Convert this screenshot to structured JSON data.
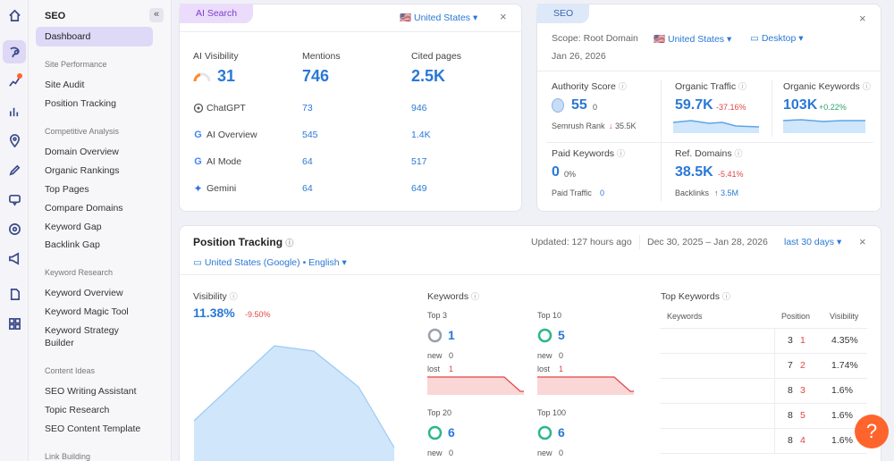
{
  "colors": {
    "accent": "#2a78d6",
    "brand": "#ff642d",
    "ai_tag": "#ecdcfb",
    "seo_tag": "#dde9f9",
    "chart_fill": "#cfe6fb",
    "red_fill": "#fbd6d6"
  },
  "rail_icons": [
    "home-icon",
    "seo-icon",
    "sparkle-chart-icon",
    "bar-chart-icon",
    "location-icon",
    "pen-icon",
    "chat-icon",
    "radar-icon",
    "megaphone-icon",
    "document-icon",
    "apps-icon"
  ],
  "sidebar": {
    "title": "SEO",
    "collapse": "«",
    "dashboard": "Dashboard",
    "sections": {
      "site_performance": "Site Performance",
      "competitive": "Competitive Analysis",
      "keyword_research": "Keyword Research",
      "content_ideas": "Content Ideas",
      "link_building": "Link Building"
    },
    "items": {
      "site_audit": "Site Audit",
      "position_tracking": "Position Tracking",
      "domain_overview": "Domain Overview",
      "organic_rankings": "Organic Rankings",
      "top_pages": "Top Pages",
      "compare_domains": "Compare Domains",
      "keyword_gap": "Keyword Gap",
      "backlink_gap": "Backlink Gap",
      "keyword_overview": "Keyword Overview",
      "keyword_magic": "Keyword Magic Tool",
      "keyword_strategy": "Keyword Strategy",
      "keyword_strategy2": "Builder",
      "seo_writing": "SEO Writing Assistant",
      "topic_research": "Topic Research",
      "seo_content": "SEO Content Template"
    }
  },
  "ai": {
    "tag": "AI Search",
    "country": "United States",
    "close": "×",
    "visibility_label": "AI Visibility",
    "visibility": "31",
    "mentions_label": "Mentions",
    "mentions": "746",
    "cited_label": "Cited pages",
    "cited": "2.5K",
    "rows": [
      {
        "name": "ChatGPT",
        "icon": "openai-icon",
        "mentions": "73",
        "cited": "946"
      },
      {
        "name": "AI Overview",
        "icon": "google-icon",
        "mentions": "545",
        "cited": "1.4K"
      },
      {
        "name": "AI Mode",
        "icon": "google-icon",
        "mentions": "64",
        "cited": "517"
      },
      {
        "name": "Gemini",
        "icon": "gemini-icon",
        "mentions": "64",
        "cited": "649"
      }
    ]
  },
  "seo": {
    "tag": "SEO",
    "close": "×",
    "scope": "Scope: Root Domain",
    "country": "United States",
    "device": "Desktop",
    "date": "Jan 26, 2026",
    "authority_label": "Authority Score",
    "authority": "55",
    "authority_change": "0",
    "rank_label": "Semrush Rank",
    "rank": "35.5K",
    "traffic_label": "Organic Traffic",
    "traffic": "59.7K",
    "traffic_change": "-37.16%",
    "keywords_label": "Organic Keywords",
    "keywords": "103K",
    "keywords_change": "+0.22%",
    "paid_label": "Paid Keywords",
    "paid": "0",
    "paid_change": "0%",
    "paid_traffic_label": "Paid Traffic",
    "paid_traffic": "0",
    "ref_label": "Ref. Domains",
    "ref": "38.5K",
    "ref_change": "-5.41%",
    "backlinks_label": "Backlinks",
    "backlinks": "3.5M"
  },
  "pt": {
    "title": "Position Tracking",
    "updated": "Updated: 127 hours ago",
    "range": "Dec 30, 2025 – Jan 28, 2026",
    "period": "last 30 days",
    "close": "×",
    "location": "United States (Google) • English",
    "visibility_label": "Visibility",
    "visibility": "11.38%",
    "visibility_change": "-9.50%",
    "keywords_label": "Keywords",
    "top3_label": "Top 3",
    "top3": "1",
    "top10_label": "Top 10",
    "top10": "5",
    "top20_label": "Top 20",
    "top20": "6",
    "top100_label": "Top 100",
    "top100": "6",
    "new_label": "new",
    "lost_label": "lost",
    "top3_new": "0",
    "top3_lost": "1",
    "top10_new": "0",
    "top10_lost": "1",
    "top20_new": "0",
    "top100_new": "0",
    "top_kw_label": "Top Keywords",
    "col_keywords": "Keywords",
    "col_position": "Position",
    "col_visibility": "Visibility",
    "top_rows": [
      {
        "pos": "3",
        "chg": "1",
        "vis": "4.35%"
      },
      {
        "pos": "7",
        "chg": "2",
        "vis": "1.74%"
      },
      {
        "pos": "8",
        "chg": "3",
        "vis": "1.6%"
      },
      {
        "pos": "8",
        "chg": "5",
        "vis": "1.6%"
      },
      {
        "pos": "8",
        "chg": "4",
        "vis": "1.6%"
      }
    ]
  },
  "help": "?"
}
